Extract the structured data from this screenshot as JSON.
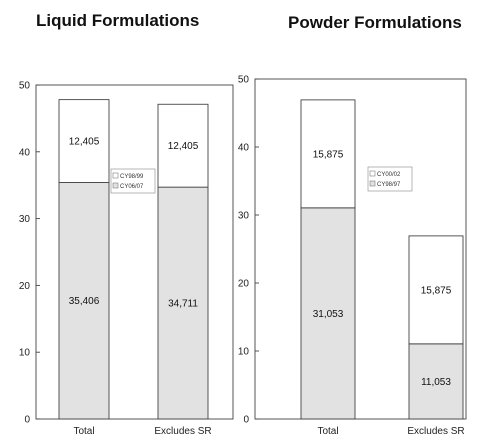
{
  "chart_data": [
    {
      "type": "bar",
      "stacked": true,
      "title": "Liquid Formulations",
      "categories": [
        "Total",
        "Excludes SR"
      ],
      "series": [
        {
          "name": "CY06/07",
          "values": [
            35.406,
            34.711
          ],
          "labels": [
            "35,406",
            "34,711"
          ],
          "color": "#e2e2e2"
        },
        {
          "name": "CY98/99",
          "values": [
            12.405,
            12.405
          ],
          "labels": [
            "12,405",
            "12,405"
          ],
          "color": "#ffffff"
        }
      ],
      "ylim": [
        0,
        50
      ],
      "yticks": [
        0,
        10,
        20,
        30,
        40,
        50
      ],
      "legend_position": "center",
      "grid": false
    },
    {
      "type": "bar",
      "stacked": true,
      "title": "Powder Formulations",
      "categories": [
        "Total",
        "Excludes SR"
      ],
      "series": [
        {
          "name": "CY98/97",
          "values": [
            31.053,
            11.053
          ],
          "labels": [
            "31,053",
            "11,053"
          ],
          "color": "#e2e2e2"
        },
        {
          "name": "CY00/02",
          "values": [
            15.875,
            15.875
          ],
          "labels": [
            "15,875",
            "15,875"
          ],
          "color": "#ffffff"
        }
      ],
      "ylim": [
        0,
        50
      ],
      "yticks": [
        0,
        10,
        20,
        30,
        40,
        50
      ],
      "legend_position": "center",
      "grid": false
    }
  ]
}
